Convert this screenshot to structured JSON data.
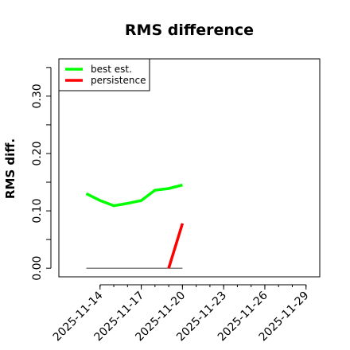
{
  "chart_data": {
    "type": "line",
    "title": "RMS difference",
    "xlabel": "",
    "ylabel": "RMS diff.",
    "ylim": [
      -0.015,
      0.365
    ],
    "xlim": [
      "2025-11-11",
      "2025-11-30"
    ],
    "y_ticks": [
      0.0,
      0.05,
      0.1,
      0.15,
      0.2,
      0.25,
      0.3,
      0.35
    ],
    "y_tick_labels": [
      "0.00",
      "",
      "0.10",
      "",
      "0.20",
      "",
      "0.30",
      ""
    ],
    "x_ticks": [
      "2025-11-14",
      "2025-11-17",
      "2025-11-20",
      "2025-11-23",
      "2025-11-26",
      "2025-11-29"
    ],
    "x_tick_labels": [
      "2025-11-14",
      "2025-11-17",
      "2025-11-20",
      "2025-11-23",
      "2025-11-26",
      "2025-11-29"
    ],
    "legend_position": "top-left",
    "series": [
      {
        "name": "best est.",
        "color": "#00ff00",
        "x": [
          "2025-11-13",
          "2025-11-14",
          "2025-11-15",
          "2025-11-16",
          "2025-11-17",
          "2025-11-18",
          "2025-11-19",
          "2025-11-20"
        ],
        "y": [
          0.13,
          0.118,
          0.109,
          0.113,
          0.118,
          0.136,
          0.139,
          0.145
        ]
      },
      {
        "name": "persistence",
        "color": "#ff0000",
        "x": [
          "2025-11-19",
          "2025-11-20"
        ],
        "y": [
          0.0,
          0.078
        ]
      }
    ],
    "reference_line": {
      "color": "#555555",
      "x": [
        "2025-11-13",
        "2025-11-20"
      ],
      "y": [
        0.0,
        0.0
      ]
    }
  }
}
